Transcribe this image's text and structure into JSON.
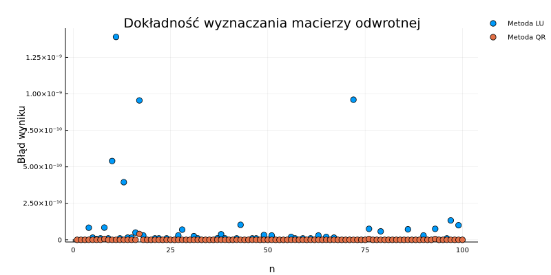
{
  "chart_data": {
    "type": "scatter",
    "title": "Dokładność wyznaczania macierzy odwrotnej",
    "xlabel": "n",
    "ylabel": "Błąd wyniku",
    "xlim": [
      -2,
      104
    ],
    "ylim": [
      -1.5e-11,
      1.45e-09
    ],
    "x_ticks": [
      0,
      25,
      50,
      75,
      100
    ],
    "x_tick_labels": [
      "0",
      "25",
      "50",
      "75",
      "100"
    ],
    "y_ticks": [
      0,
      2.5e-10,
      5e-10,
      7.5e-10,
      1e-09,
      1.25e-09
    ],
    "y_tick_labels": [
      "0",
      "2.50×10⁻¹⁰",
      "5.00×10⁻¹⁰",
      "7.50×10⁻¹⁰",
      "1.00×10⁻⁹",
      "1.25×10⁻⁹"
    ],
    "grid": true,
    "legend_position": "top-right",
    "series": [
      {
        "name": "Metoda LU",
        "color": "#009AFA",
        "x": [
          1,
          2,
          3,
          4,
          5,
          6,
          7,
          8,
          9,
          10,
          11,
          12,
          13,
          14,
          15,
          16,
          17,
          18,
          19,
          20,
          21,
          22,
          23,
          24,
          25,
          26,
          27,
          28,
          29,
          30,
          31,
          32,
          33,
          34,
          35,
          36,
          37,
          38,
          39,
          40,
          41,
          42,
          43,
          44,
          45,
          46,
          47,
          48,
          49,
          50,
          51,
          52,
          53,
          54,
          55,
          56,
          57,
          58,
          59,
          60,
          61,
          62,
          63,
          64,
          65,
          66,
          67,
          68,
          69,
          70,
          71,
          72,
          73,
          74,
          75,
          76,
          77,
          78,
          79,
          80,
          81,
          82,
          83,
          84,
          85,
          86,
          87,
          88,
          89,
          90,
          91,
          92,
          93,
          94,
          95,
          96,
          97,
          98,
          99,
          100
        ],
        "y": [
          0,
          0,
          0,
          8.3e-11,
          1.5e-11,
          5e-12,
          1e-11,
          8.4e-11,
          1e-11,
          5.4e-10,
          1.39e-09,
          1e-11,
          3.95e-10,
          1.5e-11,
          1.5e-11,
          5e-11,
          9.55e-10,
          3e-11,
          0,
          0,
          1e-11,
          1e-11,
          0,
          1e-11,
          0,
          0,
          3e-11,
          7e-11,
          0,
          0,
          2.5e-11,
          1e-11,
          0,
          0,
          0,
          0,
          1e-11,
          3.8e-11,
          1e-11,
          0,
          0,
          1e-11,
          1.03e-10,
          0,
          0,
          1e-11,
          1e-11,
          0,
          3.3e-11,
          0,
          3e-11,
          0,
          0,
          0,
          0,
          2e-11,
          1e-11,
          0,
          1e-11,
          0,
          1e-11,
          0,
          3e-11,
          0,
          2e-11,
          0,
          1.5e-11,
          0,
          0,
          0,
          0,
          9.6e-10,
          0,
          0,
          0,
          7.5e-11,
          0,
          0,
          5.8e-11,
          0,
          0,
          0,
          0,
          0,
          0,
          7.2e-11,
          0,
          0,
          0,
          3e-11,
          0,
          0,
          7.5e-11,
          0,
          0,
          1e-11,
          1.33e-10,
          0,
          1e-10,
          0
        ]
      },
      {
        "name": "Metoda QR",
        "color": "#E26F46",
        "x": [
          1,
          2,
          3,
          4,
          5,
          6,
          7,
          8,
          9,
          10,
          11,
          12,
          13,
          14,
          15,
          16,
          17,
          18,
          19,
          20,
          21,
          22,
          23,
          24,
          25,
          26,
          27,
          28,
          29,
          30,
          31,
          32,
          33,
          34,
          35,
          36,
          37,
          38,
          39,
          40,
          41,
          42,
          43,
          44,
          45,
          46,
          47,
          48,
          49,
          50,
          51,
          52,
          53,
          54,
          55,
          56,
          57,
          58,
          59,
          60,
          61,
          62,
          63,
          64,
          65,
          66,
          67,
          68,
          69,
          70,
          71,
          72,
          73,
          74,
          75,
          76,
          77,
          78,
          79,
          80,
          81,
          82,
          83,
          84,
          85,
          86,
          87,
          88,
          89,
          90,
          91,
          92,
          93,
          94,
          95,
          96,
          97,
          98,
          99,
          100
        ],
        "y": [
          0,
          0,
          0,
          0,
          0,
          0,
          0,
          5e-12,
          0,
          0,
          0,
          0,
          0,
          0,
          0,
          0,
          4e-11,
          0,
          0,
          0,
          0,
          0,
          0,
          0,
          0,
          0,
          0,
          0,
          0,
          0,
          0,
          0,
          0,
          0,
          0,
          0,
          0,
          0,
          0,
          0,
          0,
          0,
          0,
          0,
          0,
          0,
          0,
          0,
          0,
          0,
          0,
          0,
          0,
          0,
          0,
          0,
          0,
          0,
          0,
          0,
          0,
          0,
          0,
          0,
          0,
          0,
          0,
          0,
          0,
          0,
          0,
          0,
          0,
          0,
          0,
          5e-12,
          0,
          0,
          0,
          0,
          0,
          0,
          0,
          0,
          0,
          0,
          0,
          0,
          0,
          0,
          0,
          0,
          5e-12,
          0,
          0,
          0,
          0,
          0,
          0,
          0
        ]
      }
    ]
  }
}
